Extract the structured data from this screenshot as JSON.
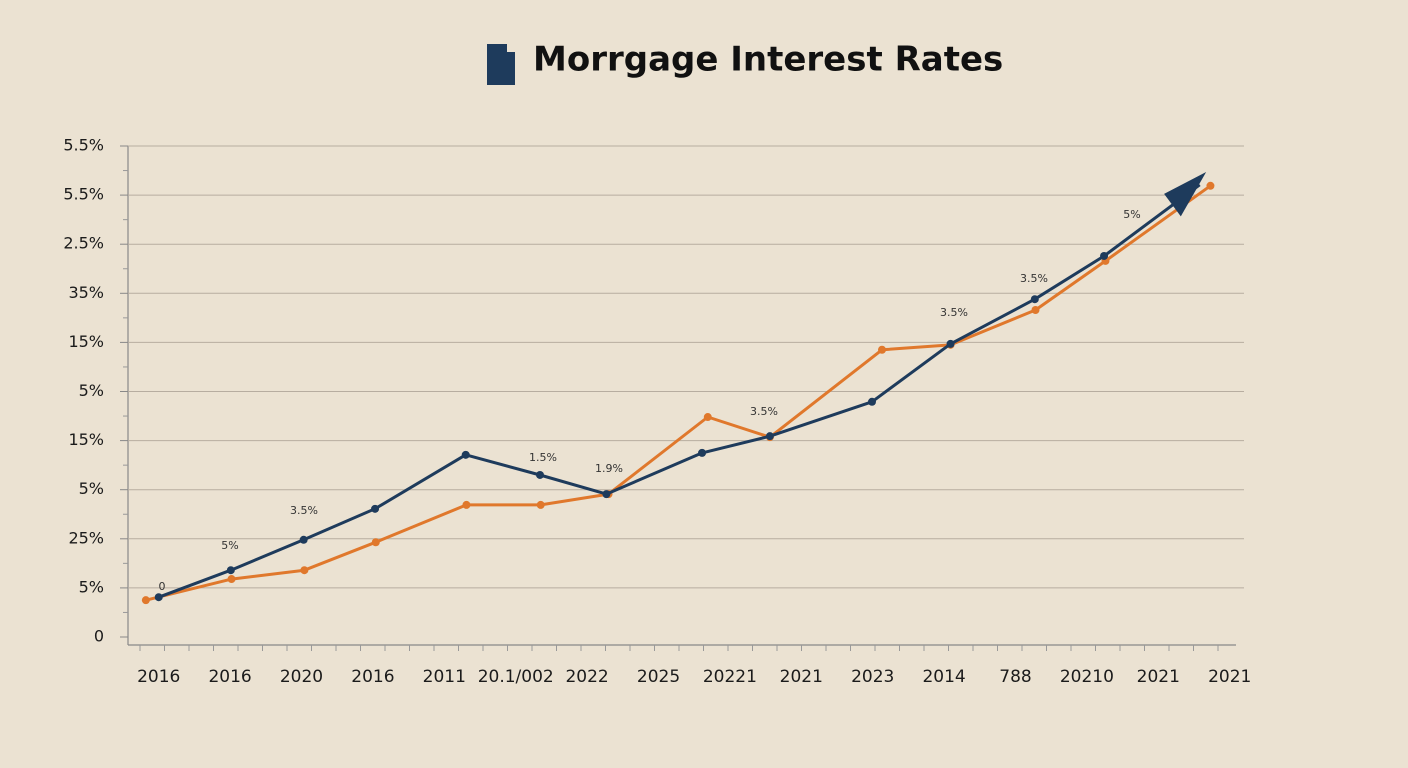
{
  "chart_data": {
    "type": "line",
    "title": "Morrgage Interest Rates",
    "categories": [
      "2016",
      "2016",
      "2020",
      "2016",
      "2011",
      "20.1/002",
      "2022",
      "2025",
      "20221",
      "2021",
      "2023",
      "2014",
      "788",
      "20210",
      "2021",
      "2021"
    ],
    "xlim": [
      -0.43,
      15.2
    ],
    "ylim": [
      0,
      10
    ],
    "yticks": [
      0,
      {
        "value": 1,
        "label": "5%"
      },
      {
        "value": 2,
        "label": "25%"
      },
      {
        "value": 3,
        "label": "5%"
      },
      {
        "value": 4,
        "label": "15%"
      },
      {
        "value": 5,
        "label": "5%"
      },
      {
        "value": 6,
        "label": "15%"
      },
      {
        "value": 7,
        "label": "35%"
      },
      {
        "value": 8,
        "label": "2.5%"
      },
      {
        "value": 9,
        "label": "5.5%"
      },
      {
        "value": 10,
        "label": "5.5%"
      }
    ],
    "grid": true,
    "series": [
      {
        "color": "#e0782c",
        "x": [
          -0.18,
          1.02,
          2.04,
          3.04,
          4.31,
          5.35,
          6.3,
          7.69,
          8.56,
          10.13,
          11.09,
          12.28,
          13.26,
          14.73
        ],
        "values": [
          0.75,
          1.18,
          1.36,
          1.93,
          2.69,
          2.69,
          2.91,
          4.48,
          4.07,
          5.85,
          5.95,
          6.66,
          7.66,
          9.19
        ]
      },
      {
        "color": "#1e3b5c",
        "x": [
          0,
          1.01,
          2.03,
          3.03,
          4.3,
          5.34,
          6.27,
          7.61,
          8.56,
          9.99,
          11.09,
          12.27,
          13.24,
          14.58
        ],
        "values": [
          0.81,
          1.36,
          1.98,
          2.61,
          3.71,
          3.3,
          2.91,
          3.75,
          4.09,
          4.79,
          5.97,
          6.88,
          7.76,
          9.21
        ]
      }
    ],
    "annotations": [
      "0",
      "5%",
      "3.5%",
      "1.5%",
      "1.9%",
      "3.5%",
      "3.5%",
      "3.5%",
      "5%"
    ]
  }
}
